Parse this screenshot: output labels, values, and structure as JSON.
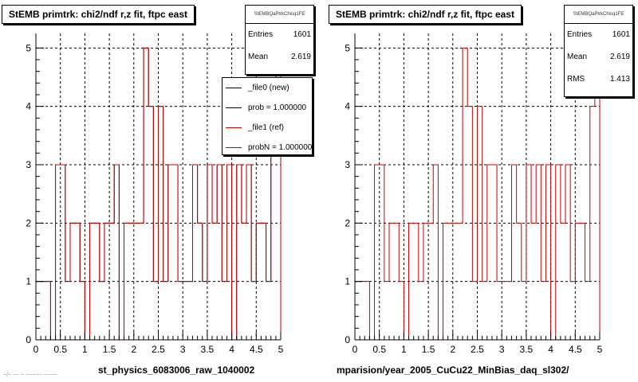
{
  "colors": {
    "new": "#000000",
    "ref": "#cc0000",
    "grid": "#000000"
  },
  "left_pad": {
    "title": "StEMB primtrk: chi2/ndf r,z fit, ftpc east",
    "stats": {
      "name": "StEMBQaPtrkChisq1FE",
      "entries_label": "Entries",
      "entries": "1601",
      "mean_label": "Mean",
      "mean": "2.619"
    },
    "legend": [
      {
        "label": "_file0 (new)",
        "color": "#000000"
      },
      {
        "label": "prob = 1.000000",
        "color": "#000000"
      },
      {
        "label": "_file1 (ref)",
        "color": "#cc0000"
      },
      {
        "label": "probN = 1.000000",
        "color": "#cc0000"
      }
    ],
    "footer": "st_physics_6083006_raw_1040002",
    "corner": "~/~ ~~ ~ ~~~~~ ~~~~"
  },
  "right_pad": {
    "title": "StEMB primtrk: chi2/ndf r,z fit, ftpc east",
    "stats": {
      "name": "StEMBQaPtrkChisq1FE",
      "entries_label": "Entries",
      "entries": "1601",
      "mean_label": "Mean",
      "mean": "2.619",
      "rms_label": "RMS",
      "rms": "1.413"
    },
    "footer": "mparision/year_2005_CuCu22_MinBias_daq_sl302/"
  },
  "chart_data": [
    {
      "type": "bar",
      "title": "StEMB primtrk: chi2/ndf r,z fit, ftpc east",
      "xlabel": "st_physics_6083006_raw_1040002",
      "ylabel": "",
      "xlim": [
        0,
        5
      ],
      "ylim": [
        0,
        5.25
      ],
      "x_ticks": [
        "0",
        "0.5",
        "1",
        "1.5",
        "2",
        "2.5",
        "3",
        "3.5",
        "4",
        "4.5",
        "5"
      ],
      "y_ticks": [
        "0",
        "1",
        "2",
        "3",
        "4",
        "5"
      ],
      "bin_width": 0.1,
      "x": [
        0.05,
        0.15,
        0.25,
        0.35,
        0.45,
        0.55,
        0.65,
        0.75,
        0.85,
        0.95,
        1.05,
        1.15,
        1.25,
        1.35,
        1.45,
        1.55,
        1.65,
        1.75,
        1.85,
        1.95,
        2.05,
        2.15,
        2.25,
        2.35,
        2.45,
        2.55,
        2.65,
        2.75,
        2.85,
        2.95,
        3.05,
        3.15,
        3.25,
        3.35,
        3.45,
        3.55,
        3.65,
        3.75,
        3.85,
        3.95,
        4.05,
        4.15,
        4.25,
        4.35,
        4.45,
        4.55,
        4.65,
        4.75,
        4.85,
        4.95
      ],
      "series": [
        {
          "name": "_file0 (new)",
          "values": [
            1,
            1,
            1,
            0,
            3,
            3,
            1,
            2,
            2,
            1,
            0,
            2,
            2,
            1,
            2,
            2,
            3,
            0,
            2,
            2,
            2,
            2,
            5,
            4,
            1,
            4,
            1,
            3,
            3,
            1,
            1,
            1,
            3,
            2,
            1,
            3,
            2,
            3,
            1,
            3,
            0,
            3,
            2,
            3,
            1,
            2,
            2,
            1,
            4,
            5
          ]
        },
        {
          "name": "_file1 (ref)",
          "values": [
            1,
            1,
            1,
            0,
            3,
            3,
            1,
            2,
            2,
            1,
            0,
            2,
            2,
            1,
            2,
            2,
            3,
            0,
            2,
            2,
            2,
            2,
            5,
            4,
            1,
            4,
            1,
            3,
            3,
            1,
            1,
            1,
            3,
            2,
            1,
            3,
            2,
            3,
            1,
            3,
            0,
            3,
            2,
            3,
            1,
            2,
            2,
            1,
            4,
            5
          ]
        }
      ],
      "grid": true,
      "legend_position": "top-right"
    },
    {
      "type": "bar",
      "title": "StEMB primtrk: chi2/ndf r,z fit, ftpc east",
      "xlabel": "mparision/year_2005_CuCu22_MinBias_daq_sl302/",
      "ylabel": "",
      "xlim": [
        0,
        5
      ],
      "ylim": [
        0,
        5.25
      ],
      "x_ticks": [
        "0",
        "0.5",
        "1",
        "1.5",
        "2",
        "2.5",
        "3",
        "3.5",
        "4",
        "4.5",
        "5"
      ],
      "y_ticks": [
        "0",
        "1",
        "2",
        "3",
        "4",
        "5"
      ],
      "bin_width": 0.1,
      "x": [
        0.05,
        0.15,
        0.25,
        0.35,
        0.45,
        0.55,
        0.65,
        0.75,
        0.85,
        0.95,
        1.05,
        1.15,
        1.25,
        1.35,
        1.45,
        1.55,
        1.65,
        1.75,
        1.85,
        1.95,
        2.05,
        2.15,
        2.25,
        2.35,
        2.45,
        2.55,
        2.65,
        2.75,
        2.85,
        2.95,
        3.05,
        3.15,
        3.25,
        3.35,
        3.45,
        3.55,
        3.65,
        3.75,
        3.85,
        3.95,
        4.05,
        4.15,
        4.25,
        4.35,
        4.45,
        4.55,
        4.65,
        4.75,
        4.85,
        4.95
      ],
      "series": [
        {
          "name": "",
          "values": [
            1,
            1,
            1,
            0,
            3,
            3,
            1,
            2,
            2,
            1,
            0,
            2,
            2,
            1,
            2,
            2,
            3,
            0,
            2,
            2,
            2,
            2,
            5,
            4,
            1,
            4,
            1,
            3,
            3,
            1,
            1,
            1,
            3,
            2,
            1,
            3,
            2,
            3,
            1,
            3,
            0,
            3,
            2,
            3,
            1,
            2,
            2,
            1,
            4,
            5
          ]
        }
      ],
      "grid": true,
      "legend_position": "none"
    }
  ]
}
